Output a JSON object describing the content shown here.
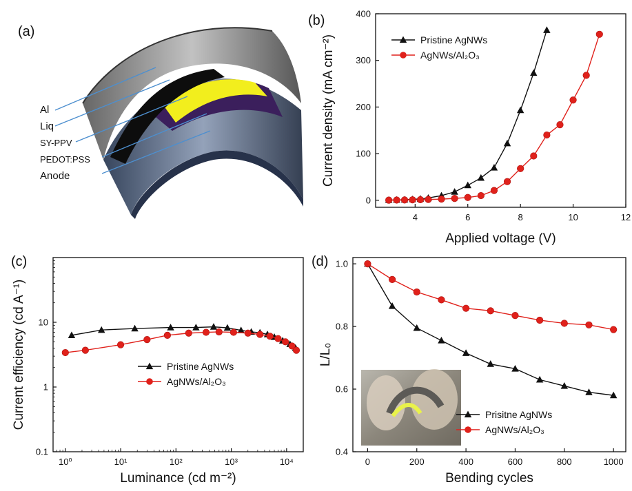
{
  "colors": {
    "pristine": "#111111",
    "treated": "#e0211b",
    "axis": "#111111"
  },
  "panels": {
    "a": {
      "label": "(a)",
      "layers": [
        "Al",
        "Liq",
        "SY-PPV",
        "PEDOT:PSS",
        "Anode"
      ]
    }
  },
  "chart_data": [
    {
      "id": "b",
      "panel_label": "(b)",
      "type": "line",
      "xlabel": "Applied voltage (V)",
      "ylabel": "Current density (mA cm⁻²)",
      "xlim": [
        2.5,
        12
      ],
      "ylim": [
        -15,
        400
      ],
      "xticks": [
        4,
        6,
        8,
        10,
        12
      ],
      "yticks": [
        0,
        100,
        200,
        300,
        400
      ],
      "legend_position": "top-left",
      "series": [
        {
          "name": "Pristine AgNWs",
          "marker": "triangle",
          "color": "#111111",
          "x": [
            3.0,
            3.3,
            3.6,
            3.9,
            4.2,
            4.5,
            5.0,
            5.5,
            6.0,
            6.5,
            7.0,
            7.5,
            8.0,
            8.5,
            9.0
          ],
          "y": [
            0.5,
            0.8,
            1.2,
            2,
            3,
            5,
            10,
            18,
            32,
            48,
            70,
            122,
            193,
            273,
            365
          ]
        },
        {
          "name": "AgNWs/Al₂O₃",
          "marker": "circle",
          "color": "#e0211b",
          "x": [
            3.0,
            3.3,
            3.6,
            3.9,
            4.2,
            4.5,
            5.0,
            5.5,
            6.0,
            6.5,
            7.0,
            7.5,
            8.0,
            8.5,
            9.0,
            9.5,
            10.0,
            10.5,
            11.0
          ],
          "y": [
            0.3,
            0.5,
            0.7,
            1,
            1.3,
            1.8,
            2.5,
            4,
            6,
            10,
            21,
            40,
            68,
            95,
            140,
            162,
            215,
            268,
            356
          ]
        }
      ]
    },
    {
      "id": "c",
      "panel_label": "(c)",
      "type": "line",
      "xscale": "log",
      "yscale": "log",
      "xlabel": "Luminance (cd m⁻²)",
      "ylabel": "Current efficiency (cd A⁻¹)",
      "xlim": [
        0.6,
        20000
      ],
      "ylim": [
        0.1,
        100
      ],
      "xticks": [
        1,
        10,
        100,
        1000,
        10000
      ],
      "xticklabels": [
        "10⁰",
        "10¹",
        "10²",
        "10³",
        "10⁴"
      ],
      "yticks": [
        0.1,
        1,
        10
      ],
      "yticklabels": [
        "0.1",
        "1",
        "10"
      ],
      "legend_position": "center",
      "series": [
        {
          "name": "Pristine AgNWs",
          "marker": "triangle",
          "color": "#111111",
          "x": [
            1.3,
            4.5,
            18,
            80,
            230,
            480,
            850,
            1500,
            2300,
            3300,
            4500,
            6000,
            8500,
            11500,
            14500
          ],
          "y": [
            6.3,
            7.6,
            8.0,
            8.3,
            8.3,
            8.5,
            8.2,
            7.5,
            7.1,
            6.9,
            6.5,
            5.9,
            5.2,
            4.6,
            4.0
          ]
        },
        {
          "name": "AgNWs/Al₂O₃",
          "marker": "circle",
          "color": "#e0211b",
          "x": [
            1.0,
            2.3,
            10,
            30,
            70,
            170,
            350,
            600,
            1100,
            2000,
            3300,
            5000,
            7000,
            9500,
            12500,
            15000
          ],
          "y": [
            3.4,
            3.7,
            4.5,
            5.4,
            6.3,
            6.8,
            7.0,
            7.1,
            7.0,
            6.8,
            6.5,
            6.1,
            5.6,
            5.0,
            4.3,
            3.7
          ]
        }
      ]
    },
    {
      "id": "d",
      "panel_label": "(d)",
      "type": "line",
      "xlabel": "Bending cycles",
      "ylabel": "L/L₀",
      "xlim": [
        -60,
        1050
      ],
      "ylim": [
        0.4,
        1.02
      ],
      "xticks": [
        0,
        200,
        400,
        600,
        800,
        1000
      ],
      "yticks": [
        0.4,
        0.6,
        0.8,
        1.0
      ],
      "yticklabels": [
        "0.4",
        "0.6",
        "0.8",
        "1.0"
      ],
      "legend_position": "bottom-right",
      "series": [
        {
          "name": "Prisitne AgNWs",
          "marker": "triangle",
          "color": "#111111",
          "x": [
            0,
            100,
            200,
            300,
            400,
            500,
            600,
            700,
            800,
            900,
            1000
          ],
          "y": [
            1.0,
            0.865,
            0.795,
            0.755,
            0.715,
            0.68,
            0.665,
            0.63,
            0.61,
            0.59,
            0.58
          ]
        },
        {
          "name": "AgNWs/Al₂O₃",
          "marker": "circle",
          "color": "#e0211b",
          "x": [
            0,
            100,
            200,
            300,
            400,
            500,
            600,
            700,
            800,
            900,
            1000
          ],
          "y": [
            1.0,
            0.95,
            0.91,
            0.885,
            0.858,
            0.85,
            0.835,
            0.82,
            0.81,
            0.805,
            0.79
          ]
        }
      ]
    }
  ]
}
